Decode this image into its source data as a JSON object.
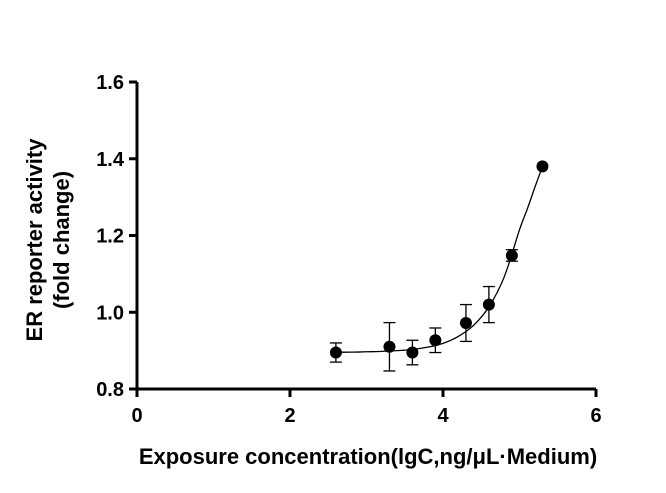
{
  "chart_data": {
    "type": "scatter",
    "title": "",
    "xlabel": "Exposure concentration(lgC,ng/μL·Medium)",
    "ylabel_lines": [
      "ER reporter activity",
      "(fold change)"
    ],
    "xlim": [
      0,
      6
    ],
    "ylim": [
      0.8,
      1.6
    ],
    "x_ticks": [
      "0",
      "2",
      "4",
      "6"
    ],
    "y_ticks": [
      "0.8",
      "1.0",
      "1.2",
      "1.4",
      "1.6"
    ],
    "grid": false,
    "legend": "none",
    "marker_color": "#000000",
    "series": [
      {
        "points": [
          {
            "x": 2.6,
            "y": 0.895,
            "err": 0.025
          },
          {
            "x": 3.3,
            "y": 0.91,
            "err": 0.063
          },
          {
            "x": 3.6,
            "y": 0.895,
            "err": 0.032
          },
          {
            "x": 3.9,
            "y": 0.927,
            "err": 0.032
          },
          {
            "x": 4.3,
            "y": 0.972,
            "err": 0.048
          },
          {
            "x": 4.6,
            "y": 1.02,
            "err": 0.047
          },
          {
            "x": 4.9,
            "y": 1.148,
            "err": 0.015
          },
          {
            "x": 5.3,
            "y": 1.38,
            "err": 0.0
          }
        ],
        "fit_curve": {
          "x": [
            2.6,
            2.8,
            3.0,
            3.2,
            3.4,
            3.6,
            3.8,
            4.0,
            4.2,
            4.4,
            4.6,
            4.8,
            5.0,
            5.1,
            5.2,
            5.3
          ],
          "y": [
            0.896,
            0.896,
            0.897,
            0.898,
            0.9,
            0.903,
            0.909,
            0.919,
            0.937,
            0.966,
            1.014,
            1.092,
            1.215,
            1.268,
            1.325,
            1.38
          ]
        }
      }
    ]
  }
}
